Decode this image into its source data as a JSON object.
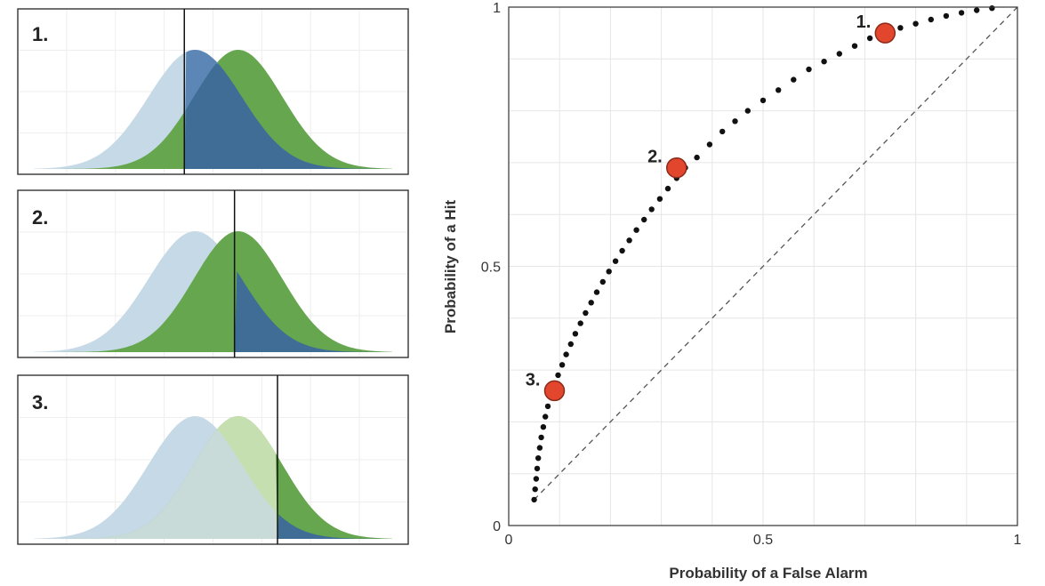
{
  "chart_data": [
    {
      "type": "area",
      "panel_label": "1.",
      "criterion": 0.42,
      "noise_mean": 0.45,
      "signal_mean": 0.57,
      "sd": 0.13,
      "colors": {
        "noise": "#c5d9e6",
        "signal": "#66a64f",
        "overlap_left": "#5b86b5",
        "overlap_right": "#3f6d96"
      }
    },
    {
      "type": "area",
      "panel_label": "2.",
      "criterion": 0.56,
      "noise_mean": 0.45,
      "signal_mean": 0.57,
      "sd": 0.13,
      "colors": {
        "noise": "#c5d9e6",
        "signal": "#66a64f",
        "overlap_right": "#3f6d96"
      }
    },
    {
      "type": "area",
      "panel_label": "3.",
      "criterion": 0.68,
      "noise_mean": 0.45,
      "signal_mean": 0.57,
      "sd": 0.13,
      "colors": {
        "noise": "#c5d9e6",
        "signal": "#66a64f",
        "signal_light": "#c6dfb0",
        "overlap_right": "#3f6d96"
      }
    },
    {
      "type": "scatter",
      "xlabel": "Probability of a False Alarm",
      "ylabel": "Probability of a Hit",
      "xlim": [
        0,
        1
      ],
      "ylim": [
        0,
        1
      ],
      "x_ticks": [
        "0",
        "0.5",
        "1"
      ],
      "y_ticks": [
        "0",
        "0.5",
        "1"
      ],
      "grid": true,
      "diagonal": {
        "from": [
          0.05,
          0.05
        ],
        "to": [
          1,
          1
        ],
        "style": "dashed"
      },
      "curve_points": [
        [
          0.05,
          0.05
        ],
        [
          0.052,
          0.07
        ],
        [
          0.054,
          0.09
        ],
        [
          0.056,
          0.11
        ],
        [
          0.058,
          0.13
        ],
        [
          0.061,
          0.15
        ],
        [
          0.064,
          0.17
        ],
        [
          0.068,
          0.19
        ],
        [
          0.072,
          0.21
        ],
        [
          0.077,
          0.23
        ],
        [
          0.083,
          0.25
        ],
        [
          0.09,
          0.27
        ],
        [
          0.097,
          0.29
        ],
        [
          0.105,
          0.31
        ],
        [
          0.113,
          0.33
        ],
        [
          0.122,
          0.35
        ],
        [
          0.131,
          0.37
        ],
        [
          0.141,
          0.39
        ],
        [
          0.151,
          0.41
        ],
        [
          0.162,
          0.43
        ],
        [
          0.173,
          0.45
        ],
        [
          0.185,
          0.47
        ],
        [
          0.197,
          0.49
        ],
        [
          0.21,
          0.51
        ],
        [
          0.223,
          0.53
        ],
        [
          0.237,
          0.55
        ],
        [
          0.251,
          0.57
        ],
        [
          0.266,
          0.59
        ],
        [
          0.281,
          0.61
        ],
        [
          0.297,
          0.63
        ],
        [
          0.313,
          0.65
        ],
        [
          0.33,
          0.67
        ],
        [
          0.347,
          0.69
        ],
        [
          0.37,
          0.71
        ],
        [
          0.395,
          0.735
        ],
        [
          0.42,
          0.76
        ],
        [
          0.445,
          0.78
        ],
        [
          0.47,
          0.8
        ],
        [
          0.5,
          0.82
        ],
        [
          0.53,
          0.84
        ],
        [
          0.56,
          0.86
        ],
        [
          0.59,
          0.88
        ],
        [
          0.62,
          0.895
        ],
        [
          0.65,
          0.91
        ],
        [
          0.68,
          0.925
        ],
        [
          0.71,
          0.94
        ],
        [
          0.74,
          0.95
        ],
        [
          0.77,
          0.96
        ],
        [
          0.8,
          0.968
        ],
        [
          0.83,
          0.976
        ],
        [
          0.86,
          0.983
        ],
        [
          0.89,
          0.989
        ],
        [
          0.92,
          0.994
        ],
        [
          0.95,
          0.998
        ]
      ],
      "highlighted_points": [
        {
          "label": "1.",
          "x": 0.74,
          "y": 0.95
        },
        {
          "label": "2.",
          "x": 0.33,
          "y": 0.69
        },
        {
          "label": "3.",
          "x": 0.09,
          "y": 0.26
        }
      ],
      "colors": {
        "curve": "#111111",
        "highlight": "#e2472e",
        "grid": "#e6e6e6",
        "diagonal": "#555555"
      }
    }
  ]
}
